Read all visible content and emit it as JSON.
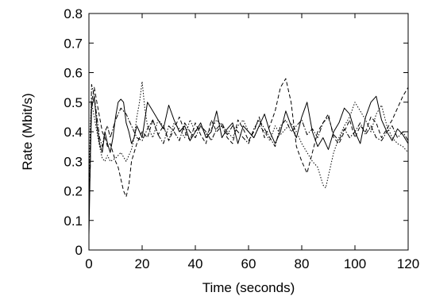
{
  "chart_data": {
    "type": "line",
    "title": "",
    "xlabel": "Time (seconds)",
    "ylabel": "Rate (Mbit/s)",
    "xlim": [
      0,
      120
    ],
    "ylim": [
      0,
      0.8
    ],
    "xticks": [
      0,
      20,
      40,
      60,
      80,
      100,
      120
    ],
    "yticks": [
      0,
      0.1,
      0.2,
      0.3,
      0.4,
      0.5,
      0.6,
      0.7,
      0.8
    ],
    "xtick_labels": [
      "0",
      "20",
      "40",
      "60",
      "80",
      "100",
      "120"
    ],
    "ytick_labels": [
      "0",
      "0.1",
      "0.2",
      "0.3",
      "0.4",
      "0.5",
      "0.6",
      "0.7",
      "0.8"
    ],
    "grid": false,
    "legend": "none",
    "series": [
      {
        "style": "solid",
        "x": [
          0,
          0.5,
          1,
          2,
          3,
          4,
          5,
          6,
          7,
          8,
          9,
          10,
          11,
          12,
          13,
          14,
          15,
          16,
          17,
          18,
          19,
          20,
          22,
          24,
          26,
          28,
          30,
          32,
          34,
          36,
          38,
          40,
          42,
          44,
          46,
          48,
          50,
          52,
          54,
          56,
          58,
          60,
          62,
          64,
          66,
          68,
          70,
          72,
          74,
          76,
          78,
          80,
          82,
          84,
          86,
          88,
          90,
          92,
          94,
          96,
          98,
          100,
          102,
          104,
          106,
          108,
          110,
          112,
          114,
          116,
          118,
          120
        ],
        "y": [
          0.05,
          0.3,
          0.48,
          0.52,
          0.42,
          0.36,
          0.33,
          0.4,
          0.36,
          0.33,
          0.38,
          0.45,
          0.5,
          0.51,
          0.5,
          0.43,
          0.4,
          0.36,
          0.38,
          0.42,
          0.4,
          0.38,
          0.5,
          0.47,
          0.44,
          0.41,
          0.49,
          0.44,
          0.4,
          0.42,
          0.37,
          0.4,
          0.43,
          0.38,
          0.4,
          0.47,
          0.38,
          0.41,
          0.43,
          0.36,
          0.42,
          0.4,
          0.38,
          0.42,
          0.46,
          0.4,
          0.36,
          0.4,
          0.47,
          0.42,
          0.38,
          0.45,
          0.5,
          0.4,
          0.35,
          0.38,
          0.34,
          0.4,
          0.43,
          0.48,
          0.46,
          0.4,
          0.36,
          0.45,
          0.5,
          0.52,
          0.44,
          0.4,
          0.37,
          0.41,
          0.39,
          0.36
        ]
      },
      {
        "style": "dashed",
        "x": [
          0,
          0.5,
          1,
          2,
          3,
          4,
          5,
          6,
          7,
          8,
          9,
          10,
          11,
          12,
          13,
          14,
          15,
          16,
          18,
          20,
          22,
          24,
          26,
          28,
          30,
          32,
          34,
          36,
          38,
          40,
          42,
          44,
          46,
          48,
          50,
          52,
          54,
          56,
          58,
          60,
          62,
          64,
          66,
          68,
          70,
          72,
          74,
          76,
          78,
          80,
          82,
          84,
          86,
          88,
          90,
          92,
          94,
          96,
          98,
          100,
          102,
          104,
          106,
          108,
          110,
          112,
          114,
          116,
          118,
          120
        ],
        "y": [
          0.1,
          0.35,
          0.5,
          0.55,
          0.5,
          0.45,
          0.4,
          0.38,
          0.35,
          0.36,
          0.33,
          0.3,
          0.28,
          0.24,
          0.2,
          0.18,
          0.22,
          0.3,
          0.36,
          0.4,
          0.38,
          0.44,
          0.39,
          0.42,
          0.37,
          0.41,
          0.45,
          0.4,
          0.37,
          0.43,
          0.39,
          0.36,
          0.44,
          0.4,
          0.42,
          0.38,
          0.36,
          0.44,
          0.41,
          0.37,
          0.4,
          0.45,
          0.38,
          0.42,
          0.47,
          0.55,
          0.58,
          0.5,
          0.35,
          0.3,
          0.26,
          0.33,
          0.4,
          0.43,
          0.46,
          0.38,
          0.36,
          0.4,
          0.44,
          0.38,
          0.42,
          0.4,
          0.45,
          0.43,
          0.38,
          0.41,
          0.44,
          0.48,
          0.52,
          0.55
        ]
      },
      {
        "style": "dotted",
        "x": [
          0,
          0.5,
          1,
          2,
          3,
          4,
          5,
          6,
          7,
          8,
          10,
          12,
          14,
          16,
          17,
          18,
          19,
          20,
          21,
          22,
          24,
          26,
          28,
          30,
          32,
          34,
          36,
          38,
          40,
          42,
          44,
          46,
          48,
          50,
          52,
          54,
          56,
          58,
          60,
          62,
          64,
          66,
          68,
          70,
          72,
          74,
          76,
          78,
          80,
          82,
          84,
          86,
          88,
          89,
          90,
          92,
          94,
          96,
          98,
          100,
          102,
          104,
          106,
          108,
          110,
          112,
          114,
          116,
          118,
          120
        ],
        "y": [
          0.2,
          0.42,
          0.5,
          0.45,
          0.4,
          0.35,
          0.31,
          0.3,
          0.32,
          0.3,
          0.31,
          0.33,
          0.3,
          0.34,
          0.38,
          0.45,
          0.5,
          0.57,
          0.48,
          0.42,
          0.38,
          0.44,
          0.42,
          0.37,
          0.43,
          0.41,
          0.38,
          0.44,
          0.4,
          0.42,
          0.39,
          0.41,
          0.44,
          0.42,
          0.4,
          0.38,
          0.42,
          0.44,
          0.4,
          0.38,
          0.42,
          0.4,
          0.37,
          0.42,
          0.39,
          0.41,
          0.43,
          0.4,
          0.36,
          0.33,
          0.3,
          0.28,
          0.22,
          0.21,
          0.25,
          0.33,
          0.38,
          0.42,
          0.45,
          0.5,
          0.47,
          0.44,
          0.4,
          0.46,
          0.49,
          0.42,
          0.38,
          0.36,
          0.35,
          0.33
        ]
      },
      {
        "style": "dash-dot",
        "x": [
          0,
          0.5,
          1,
          2,
          3,
          4,
          5,
          6,
          7,
          8,
          9,
          10,
          12,
          14,
          16,
          18,
          20,
          22,
          24,
          26,
          28,
          30,
          32,
          34,
          36,
          38,
          40,
          42,
          44,
          46,
          48,
          50,
          52,
          54,
          56,
          58,
          60,
          62,
          64,
          66,
          68,
          70,
          72,
          74,
          76,
          78,
          80,
          82,
          84,
          86,
          88,
          90,
          92,
          94,
          96,
          98,
          100,
          102,
          104,
          106,
          108,
          110,
          112,
          114,
          116,
          118,
          120
        ],
        "y": [
          0.15,
          0.28,
          0.56,
          0.52,
          0.45,
          0.38,
          0.35,
          0.4,
          0.42,
          0.38,
          0.41,
          0.44,
          0.48,
          0.46,
          0.42,
          0.38,
          0.37,
          0.41,
          0.44,
          0.39,
          0.36,
          0.42,
          0.4,
          0.37,
          0.43,
          0.4,
          0.38,
          0.42,
          0.4,
          0.37,
          0.41,
          0.43,
          0.39,
          0.42,
          0.4,
          0.38,
          0.36,
          0.41,
          0.44,
          0.41,
          0.38,
          0.35,
          0.42,
          0.44,
          0.4,
          0.42,
          0.44,
          0.39,
          0.41,
          0.38,
          0.43,
          0.45,
          0.39,
          0.37,
          0.41,
          0.38,
          0.4,
          0.43,
          0.39,
          0.42,
          0.38,
          0.37,
          0.4,
          0.42,
          0.38,
          0.4,
          0.37
        ]
      }
    ]
  }
}
